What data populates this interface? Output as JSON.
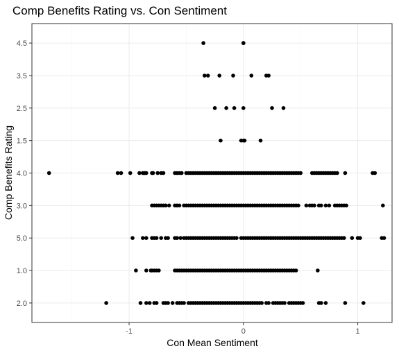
{
  "chart_data": {
    "type": "scatter",
    "title": "Comp Benefits Rating vs. Con Sentiment",
    "xlabel": "Con Mean Sentiment",
    "ylabel": "Comp Benefits Rating",
    "xlim": [
      -1.85,
      1.3
    ],
    "x_ticks": [
      -1,
      0,
      1
    ],
    "x_tick_labels": [
      "-1",
      "0",
      "1"
    ],
    "y_categories": [
      "2.0",
      "1.0",
      "5.0",
      "3.0",
      "4.0",
      "1.5",
      "2.5",
      "3.5",
      "4.5"
    ],
    "grid": true,
    "theme": "bw",
    "series": [
      {
        "points": [
          {
            "y": "4.5",
            "x": [
              -0.35,
              0.0,
              0.0
            ]
          },
          {
            "y": "3.5",
            "x": [
              -0.34,
              -0.31,
              -0.21,
              -0.09,
              0.07,
              0.2,
              0.22
            ]
          },
          {
            "y": "2.5",
            "x": [
              -0.25,
              -0.15,
              -0.08,
              0.0,
              0.25,
              0.35
            ]
          },
          {
            "y": "1.5",
            "x": [
              -0.2,
              -0.02,
              0.0,
              0.01,
              0.15
            ]
          },
          {
            "y": "4.0",
            "x": [
              -1.7,
              -1.1,
              -1.07,
              -0.99,
              -0.91,
              -0.88,
              -0.87,
              -0.86,
              -0.85,
              -0.8,
              -0.79,
              -0.75,
              -0.72,
              -0.7,
              -0.6,
              -0.58,
              -0.56,
              -0.54,
              -0.5,
              -0.48,
              -0.46,
              -0.44,
              -0.42,
              -0.4,
              -0.38,
              -0.36,
              -0.34,
              -0.32,
              -0.3,
              -0.28,
              -0.26,
              -0.24,
              -0.22,
              -0.2,
              -0.18,
              -0.16,
              -0.14,
              -0.12,
              -0.1,
              -0.08,
              -0.06,
              -0.04,
              -0.02,
              0.0,
              0.02,
              0.04,
              0.06,
              0.08,
              0.1,
              0.12,
              0.14,
              0.16,
              0.18,
              0.2,
              0.22,
              0.24,
              0.26,
              0.28,
              0.3,
              0.32,
              0.34,
              0.36,
              0.38,
              0.4,
              0.42,
              0.44,
              0.46,
              0.48,
              0.5,
              0.6,
              0.62,
              0.64,
              0.66,
              0.68,
              0.7,
              0.72,
              0.74,
              0.76,
              0.78,
              0.8,
              0.82,
              0.89,
              1.13,
              1.15
            ]
          },
          {
            "y": "3.0",
            "x": [
              -0.8,
              -0.78,
              -0.76,
              -0.74,
              -0.72,
              -0.7,
              -0.68,
              -0.65,
              -0.6,
              -0.58,
              -0.56,
              -0.52,
              -0.5,
              -0.48,
              -0.46,
              -0.44,
              -0.42,
              -0.4,
              -0.38,
              -0.36,
              -0.34,
              -0.32,
              -0.3,
              -0.28,
              -0.26,
              -0.24,
              -0.22,
              -0.2,
              -0.18,
              -0.16,
              -0.14,
              -0.12,
              -0.1,
              -0.08,
              -0.06,
              -0.04,
              -0.02,
              0.0,
              0.02,
              0.04,
              0.06,
              0.08,
              0.1,
              0.12,
              0.14,
              0.16,
              0.18,
              0.2,
              0.22,
              0.24,
              0.26,
              0.28,
              0.3,
              0.32,
              0.34,
              0.36,
              0.38,
              0.4,
              0.42,
              0.44,
              0.46,
              0.48,
              0.55,
              0.58,
              0.6,
              0.62,
              0.66,
              0.68,
              0.72,
              0.75,
              0.8,
              0.82,
              0.84,
              0.86,
              0.88,
              0.9,
              1.22
            ]
          },
          {
            "y": "5.0",
            "x": [
              -0.97,
              -0.88,
              -0.85,
              -0.8,
              -0.78,
              -0.76,
              -0.72,
              -0.68,
              -0.66,
              -0.6,
              -0.58,
              -0.55,
              -0.52,
              -0.5,
              -0.48,
              -0.46,
              -0.44,
              -0.42,
              -0.4,
              -0.38,
              -0.36,
              -0.34,
              -0.32,
              -0.3,
              -0.28,
              -0.26,
              -0.24,
              -0.22,
              -0.2,
              -0.18,
              -0.16,
              -0.14,
              -0.12,
              -0.1,
              -0.08,
              -0.06,
              -0.02,
              0.0,
              0.02,
              0.04,
              0.06,
              0.08,
              0.1,
              0.12,
              0.14,
              0.16,
              0.18,
              0.2,
              0.22,
              0.24,
              0.26,
              0.28,
              0.3,
              0.32,
              0.34,
              0.36,
              0.38,
              0.4,
              0.42,
              0.44,
              0.46,
              0.48,
              0.5,
              0.52,
              0.54,
              0.56,
              0.58,
              0.6,
              0.62,
              0.64,
              0.66,
              0.68,
              0.7,
              0.72,
              0.74,
              0.76,
              0.78,
              0.8,
              0.82,
              0.84,
              0.86,
              0.88,
              0.95,
              1.0,
              1.02,
              1.21,
              1.23
            ]
          },
          {
            "y": "1.0",
            "x": [
              -0.94,
              -0.85,
              -0.81,
              -0.8,
              -0.78,
              -0.76,
              -0.74,
              -0.6,
              -0.58,
              -0.56,
              -0.54,
              -0.52,
              -0.5,
              -0.48,
              -0.46,
              -0.44,
              -0.42,
              -0.4,
              -0.38,
              -0.36,
              -0.34,
              -0.32,
              -0.3,
              -0.28,
              -0.26,
              -0.24,
              -0.22,
              -0.2,
              -0.18,
              -0.16,
              -0.14,
              -0.12,
              -0.1,
              -0.08,
              -0.06,
              -0.04,
              -0.02,
              0.0,
              0.02,
              0.04,
              0.06,
              0.08,
              0.1,
              0.12,
              0.14,
              0.16,
              0.18,
              0.2,
              0.22,
              0.24,
              0.26,
              0.28,
              0.3,
              0.32,
              0.34,
              0.36,
              0.38,
              0.4,
              0.42,
              0.44,
              0.46,
              0.65
            ]
          },
          {
            "y": "2.0",
            "x": [
              -1.2,
              -0.9,
              -0.85,
              -0.82,
              -0.78,
              -0.76,
              -0.7,
              -0.68,
              -0.66,
              -0.62,
              -0.58,
              -0.56,
              -0.54,
              -0.52,
              -0.48,
              -0.46,
              -0.44,
              -0.42,
              -0.4,
              -0.38,
              -0.36,
              -0.34,
              -0.32,
              -0.3,
              -0.28,
              -0.26,
              -0.24,
              -0.22,
              -0.2,
              -0.18,
              -0.16,
              -0.14,
              -0.12,
              -0.1,
              -0.08,
              -0.06,
              -0.04,
              -0.02,
              0.0,
              0.02,
              0.04,
              0.06,
              0.08,
              0.1,
              0.12,
              0.14,
              0.16,
              0.2,
              0.22,
              0.26,
              0.28,
              0.3,
              0.32,
              0.34,
              0.36,
              0.4,
              0.42,
              0.44,
              0.46,
              0.48,
              0.5,
              0.52,
              0.66,
              0.68,
              0.72,
              0.89,
              1.05
            ]
          }
        ]
      }
    ]
  }
}
